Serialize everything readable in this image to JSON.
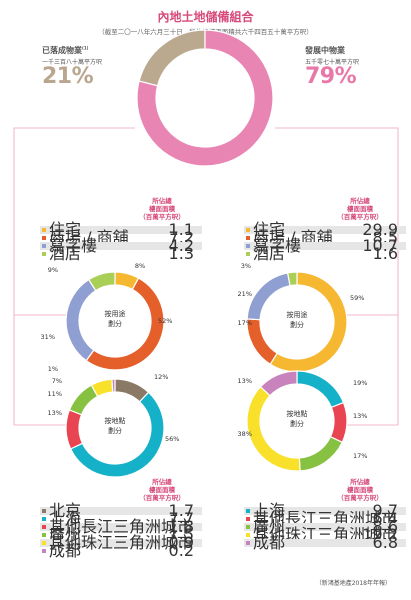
{
  "title": "內地土地儲備組合",
  "subtitle": "（截至二〇一八年六月三十日，所佔總樓面面積共六千四百五十萬平方呎）",
  "completed": {
    "label": "已落成物業",
    "superscript": "(1)",
    "sub": "一千三百八十萬平方呎",
    "pct": "21%"
  },
  "developing": {
    "label": "發展中物業",
    "sub": "五千零七十萬平方呎",
    "pct": "79%"
  },
  "table_header": "所佔總\n樓面面積\n（百萬平方呎）",
  "footer": "（新鴻基地產2018年年報）",
  "colors": {
    "completed": "#bba98f",
    "developing": "#e985b3",
    "residential": "#f6b731",
    "retail": "#e55f2a",
    "office": "#8f9fd1",
    "hotel": "#a9cf57",
    "beijing": "#8a7965",
    "shanghai": "#14b1c8",
    "yangtze": "#e84451",
    "guangzhou": "#87c142",
    "pearl": "#f9e02a",
    "chengdu": "#c883bc"
  },
  "chart_data": [
    {
      "type": "pie",
      "name": "overall",
      "categories": [
        "已落成物業",
        "發展中物業"
      ],
      "values": [
        21,
        79
      ],
      "labels": [
        "21%",
        "79%"
      ]
    },
    {
      "type": "table",
      "name": "completed-by-use",
      "header": "所佔總樓面面積（百萬平方呎）",
      "categories": [
        "住宅",
        "商場 / 商舖",
        "寫字樓",
        "酒店"
      ],
      "values": [
        1.1,
        7.2,
        4.2,
        1.3
      ]
    },
    {
      "type": "pie",
      "name": "completed-by-use-donut",
      "center": "按用途\n劃分",
      "categories": [
        "住宅",
        "商場 / 商舖",
        "寫字樓",
        "酒店"
      ],
      "values": [
        8,
        52,
        31,
        9
      ],
      "labels": [
        "8%",
        "52%",
        "31%",
        "9%"
      ]
    },
    {
      "type": "pie",
      "name": "completed-by-location-donut",
      "center": "按地點\n劃分",
      "categories": [
        "北京",
        "上海",
        "其他長江三角洲城市",
        "廣州",
        "其他珠江三角洲城市",
        "成都"
      ],
      "values": [
        12,
        56,
        13,
        11,
        7,
        1
      ],
      "labels": [
        "12%",
        "56%",
        "13%",
        "11%",
        "7%",
        "1%"
      ]
    },
    {
      "type": "table",
      "name": "completed-by-location",
      "header": "所佔總樓面面積（百萬平方呎）",
      "categories": [
        "北京",
        "上海",
        "其他長江三角洲城市",
        "廣州",
        "其他珠江三角洲城市",
        "成都"
      ],
      "values": [
        1.7,
        7.7,
        1.8,
        1.5,
        0.9,
        0.2
      ]
    },
    {
      "type": "table",
      "name": "developing-by-use",
      "header": "所佔總樓面面積（百萬平方呎）",
      "categories": [
        "住宅",
        "商場 / 商舖",
        "寫字樓",
        "酒店"
      ],
      "values": [
        29.9,
        8.5,
        10.7,
        1.6
      ]
    },
    {
      "type": "pie",
      "name": "developing-by-use-donut",
      "center": "按用途\n劃分",
      "categories": [
        "住宅",
        "商場 / 商舖",
        "寫字樓",
        "酒店"
      ],
      "values": [
        59,
        17,
        21,
        3
      ],
      "labels": [
        "59%",
        "17%",
        "21%",
        "3%"
      ]
    },
    {
      "type": "pie",
      "name": "developing-by-location-donut",
      "center": "按地點\n劃分",
      "categories": [
        "上海",
        "其他長江三角洲城市",
        "廣州",
        "其他珠江三角洲城市",
        "成都"
      ],
      "values": [
        19,
        13,
        17,
        38,
        13
      ],
      "labels": [
        "19%",
        "13%",
        "17%",
        "38%",
        "13%"
      ]
    },
    {
      "type": "table",
      "name": "developing-by-location",
      "header": "所佔總樓面面積（百萬平方呎）",
      "categories": [
        "上海",
        "其他長江三角洲城市",
        "廣州",
        "其他珠江三角洲城市",
        "成都"
      ],
      "values": [
        9.7,
        6.4,
        8.6,
        19.2,
        6.8
      ]
    }
  ]
}
